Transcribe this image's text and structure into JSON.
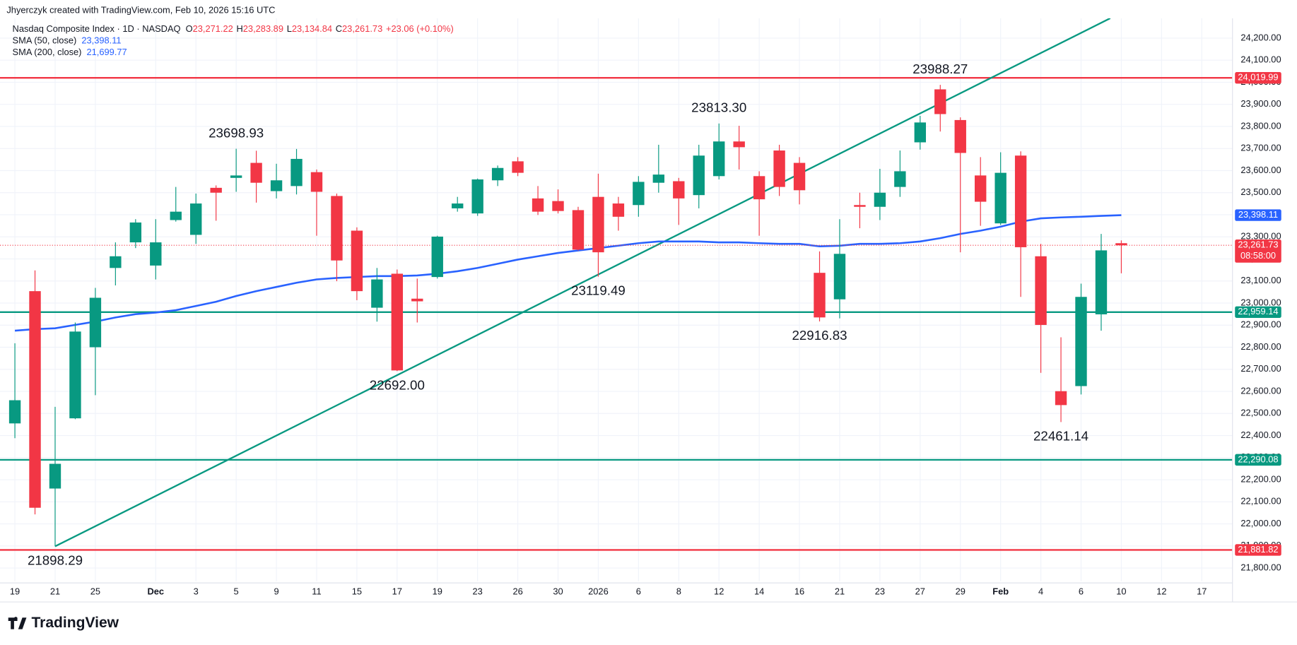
{
  "header": {
    "credit": "Jhyerczyk created with TradingView.com, Feb 10, 2026 15:16 UTC"
  },
  "footer": {
    "logo": "TradingView"
  },
  "chart_data": {
    "type": "candlestick",
    "legend": {
      "title": "Nasdaq Composite Index · 1D · NASDAQ",
      "ohlc": [
        {
          "key": "O",
          "value": "23,271.22"
        },
        {
          "key": "H",
          "value": "23,283.89"
        },
        {
          "key": "L",
          "value": "23,134.84"
        },
        {
          "key": "C",
          "value": "23,261.73"
        }
      ],
      "change": "+23.06 (+0.10%)"
    },
    "categories": [
      "19",
      null,
      "21",
      null,
      "25",
      null,
      null,
      "Dec",
      null,
      "3",
      null,
      "5",
      null,
      "9",
      null,
      "11",
      null,
      "15",
      null,
      "17",
      null,
      "19",
      null,
      "23",
      null,
      "26",
      null,
      "30",
      null,
      "2026",
      null,
      "6",
      null,
      "8",
      null,
      "12",
      null,
      "14",
      null,
      "16",
      null,
      "21",
      null,
      "23",
      null,
      "27",
      null,
      "29",
      null,
      "Feb",
      null,
      "4",
      null,
      "6",
      null,
      "10",
      null,
      "12",
      null,
      "17"
    ],
    "open": [
      22455,
      23054,
      22160,
      22478,
      22800,
      23159,
      23275,
      23170,
      23376,
      23309,
      23522,
      23567,
      23635,
      23507,
      23530,
      23593,
      23485,
      23328,
      22979,
      23133,
      23020,
      23118,
      23429,
      23406,
      23556,
      23642,
      23474,
      23462,
      23421,
      23481,
      23451,
      23444,
      23545,
      23552,
      23489,
      23575,
      23732,
      23575,
      23691,
      23635,
      23137,
      23017,
      23444,
      23436,
      23526,
      23728,
      23968,
      23829,
      23578,
      23361,
      23668,
      23212,
      22601,
      22624,
      22949,
      23271.22,
      null,
      null,
      null,
      null
    ],
    "high": [
      22818,
      23148,
      22530,
      22912,
      23069,
      23275,
      23380,
      23380,
      23526,
      23496,
      23533,
      23698.93,
      23690,
      23631,
      23698,
      23605,
      23496,
      23343,
      23159,
      23152,
      23111,
      23305,
      23481,
      23564,
      23623,
      23661,
      23530,
      23515,
      23436,
      23586,
      23481,
      23575,
      23717,
      23567,
      23717,
      23813.3,
      23803,
      23597,
      23717,
      23661,
      23234,
      23380,
      23500,
      23608,
      23691,
      23848,
      23988.27,
      23841,
      23661,
      23683,
      23687,
      23268,
      22845,
      23088,
      23313,
      23283.89,
      null,
      null,
      null,
      null
    ],
    "low": [
      22388,
      22043,
      21898.29,
      22474,
      22583,
      23080,
      23249,
      23107,
      23369,
      23268,
      23373,
      23504,
      23455,
      23474,
      23492,
      23305,
      23099,
      23013,
      22916,
      22692,
      22912,
      23111,
      23414,
      23395,
      23530,
      23575,
      23399,
      23406,
      23238,
      23119.49,
      23328,
      23391,
      23500,
      23354,
      23429,
      23560,
      23605,
      23305,
      23485,
      23447,
      22916.83,
      22931,
      23339,
      23376,
      23481,
      23695,
      23777,
      23230,
      23350,
      23354,
      23028,
      22684,
      22461.14,
      22586,
      22875,
      23134.84,
      null,
      null,
      null,
      null
    ],
    "close": [
      22560,
      22073,
      22272,
      22871,
      23024,
      23212,
      23365,
      23275,
      23414,
      23451,
      23500,
      23578,
      23545,
      23556,
      23653,
      23504,
      23193,
      23054,
      23107,
      22695,
      23008,
      23301,
      23451,
      23560,
      23612,
      23590,
      23414,
      23417,
      23242,
      23230,
      23391,
      23549,
      23582,
      23474,
      23668,
      23732,
      23706,
      23470,
      23526,
      23511,
      22935,
      23223,
      23436,
      23500,
      23597,
      23818,
      23856,
      23680,
      23459,
      23590,
      23253,
      22901,
      22538,
      23028,
      23238.67,
      23261.73,
      null,
      null,
      null,
      null
    ],
    "up_color": "#089981",
    "down_color": "#f23645",
    "sma": [
      {
        "name": "SMA (50, close)",
        "color": "#2962ff",
        "last_label": "23,398.11",
        "values": [
          22875,
          22882,
          22886,
          22901,
          22916,
          22935,
          22950,
          22957,
          22968,
          22987,
          23006,
          23032,
          23054,
          23073,
          23092,
          23107,
          23114,
          23118,
          23122,
          23122,
          23125,
          23133,
          23144,
          23159,
          23178,
          23197,
          23212,
          23227,
          23238,
          23249,
          23260,
          23271,
          23279,
          23279,
          23279,
          23275,
          23275,
          23271,
          23268,
          23268,
          23257,
          23260,
          23268,
          23268,
          23271,
          23279,
          23294,
          23313,
          23328,
          23346,
          23369,
          23384,
          23388,
          23391,
          23395,
          23398.11,
          null,
          null,
          null,
          null
        ]
      },
      {
        "name": "SMA (200, close)",
        "color": "#2962ff",
        "last_label": "21,699.77"
      }
    ],
    "last_price_label": "23,261.73",
    "countdown": "08:58:00",
    "levels": [
      {
        "value": 24019.99,
        "label": "24,019.99",
        "color": "#f23645"
      },
      {
        "value": 22959.14,
        "label": "22,959.14",
        "color": "#089981"
      },
      {
        "value": 22290.08,
        "label": "22,290.08",
        "color": "#089981"
      },
      {
        "value": 21881.82,
        "label": "21,881.82",
        "color": "#f23645"
      }
    ],
    "trendline": {
      "from": 21898.29,
      "rise_per_bar": 45.6,
      "color": "#089981"
    },
    "annotations": [
      {
        "value": 23698.93,
        "label": "23698.93"
      },
      {
        "value": 23813.3,
        "label": "23813.30"
      },
      {
        "value": 23988.27,
        "label": "23988.27"
      },
      {
        "value": 21898.29,
        "label": "21898.29"
      },
      {
        "value": 22692,
        "label": "22692.00"
      },
      {
        "value": 23119.49,
        "label": "23119.49"
      },
      {
        "value": 22916.83,
        "label": "22916.83"
      },
      {
        "value": 22461.14,
        "label": "22461.14"
      }
    ],
    "ylim": [
      21740,
      24290
    ],
    "yticks": [
      {
        "value": 21800,
        "label": "21,800.00"
      },
      {
        "value": 21900,
        "label": "21,900.00"
      },
      {
        "value": 22000,
        "label": "22,000.00"
      },
      {
        "value": 22100,
        "label": "22,100.00"
      },
      {
        "value": 22200,
        "label": "22,200.00"
      },
      {
        "value": 22300,
        "label": "22,300.00"
      },
      {
        "value": 22400,
        "label": "22,400.00"
      },
      {
        "value": 22500,
        "label": "22,500.00"
      },
      {
        "value": 22600,
        "label": "22,600.00"
      },
      {
        "value": 22700,
        "label": "22,700.00"
      },
      {
        "value": 22800,
        "label": "22,800.00"
      },
      {
        "value": 22900,
        "label": "22,900.00"
      },
      {
        "value": 23000,
        "label": "23,000.00"
      },
      {
        "value": 23100,
        "label": "23,100.00"
      },
      {
        "value": 23200,
        "label": "23,200.00"
      },
      {
        "value": 23300,
        "label": "23,300.00"
      },
      {
        "value": 23400,
        "label": "23,400.00"
      },
      {
        "value": 23500,
        "label": "23,500.00"
      },
      {
        "value": 23600,
        "label": "23,600.00"
      },
      {
        "value": 23700,
        "label": "23,700.00"
      },
      {
        "value": 23800,
        "label": "23,800.00"
      },
      {
        "value": 23900,
        "label": "23,900.00"
      },
      {
        "value": 24000,
        "label": "24,000.00"
      },
      {
        "value": 24100,
        "label": "24,100.00"
      },
      {
        "value": 24200,
        "label": "24,200.00"
      }
    ],
    "grid": true
  }
}
